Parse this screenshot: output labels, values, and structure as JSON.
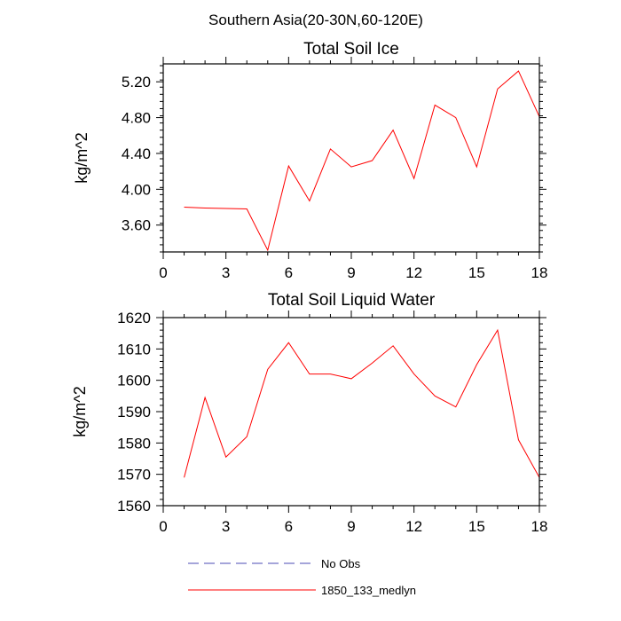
{
  "figure": {
    "suptitle": "Southern Asia(20-30N,60-120E)"
  },
  "chart_data": [
    {
      "type": "line",
      "title": "Total Soil Ice",
      "xlabel": "",
      "ylabel": "kg/m^2",
      "xlim": [
        0,
        18
      ],
      "ylim": [
        3.3,
        5.4
      ],
      "xticks": [
        0,
        3,
        6,
        9,
        12,
        15,
        18
      ],
      "xtick_labels": [
        "0",
        "3",
        "6",
        "9",
        "12",
        "15",
        "18"
      ],
      "yticks": [
        3.6,
        4.0,
        4.4,
        4.8,
        5.2
      ],
      "ytick_labels": [
        "3.60",
        "4.00",
        "4.40",
        "4.80",
        "5.20"
      ],
      "series": [
        {
          "name": "1850_133_medlyn",
          "color": "#ff0000",
          "x": [
            1,
            2,
            3,
            4,
            5,
            6,
            7,
            8,
            9,
            10,
            11,
            12,
            13,
            14,
            15,
            16,
            17,
            18
          ],
          "y": [
            3.8,
            3.79,
            3.785,
            3.78,
            3.32,
            4.26,
            3.87,
            4.45,
            4.25,
            4.32,
            4.66,
            4.12,
            4.94,
            4.8,
            4.25,
            5.12,
            5.32,
            4.81
          ]
        }
      ]
    },
    {
      "type": "line",
      "title": "Total Soil Liquid Water",
      "xlabel": "",
      "ylabel": "kg/m^2",
      "xlim": [
        0,
        18
      ],
      "ylim": [
        1560,
        1620
      ],
      "xticks": [
        0,
        3,
        6,
        9,
        12,
        15,
        18
      ],
      "xtick_labels": [
        "0",
        "3",
        "6",
        "9",
        "12",
        "15",
        "18"
      ],
      "yticks": [
        1560,
        1570,
        1580,
        1590,
        1600,
        1610,
        1620
      ],
      "ytick_labels": [
        "1560",
        "1570",
        "1580",
        "1590",
        "1600",
        "1610",
        "1620"
      ],
      "series": [
        {
          "name": "1850_133_medlyn",
          "color": "#ff0000",
          "x": [
            1,
            2,
            3,
            4,
            5,
            6,
            7,
            8,
            9,
            10,
            11,
            12,
            13,
            14,
            15,
            16,
            17,
            18
          ],
          "y": [
            1569,
            1594.5,
            1575.5,
            1582,
            1603.5,
            1612,
            1602,
            1602,
            1600.5,
            1605.5,
            1611,
            1602,
            1595,
            1591.5,
            1605,
            1616,
            1581,
            1569
          ]
        }
      ]
    }
  ],
  "legend": {
    "placement": "bottom",
    "items": [
      {
        "label": "No Obs",
        "color": "#4b4bb4",
        "style": "dashed"
      },
      {
        "label": "1850_133_medlyn",
        "color": "#ff0000",
        "style": "solid"
      }
    ]
  }
}
